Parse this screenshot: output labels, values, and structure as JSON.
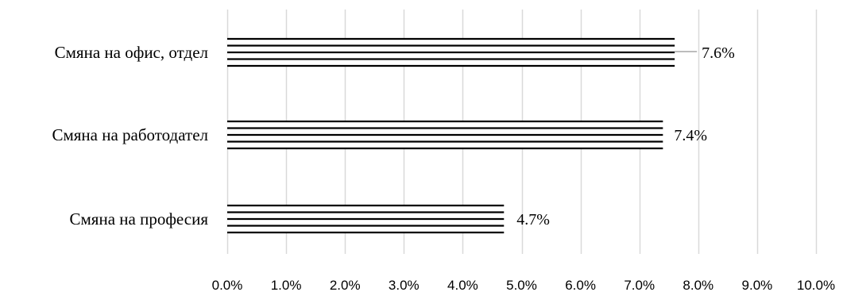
{
  "chart_data": {
    "type": "bar",
    "orientation": "horizontal",
    "categories": [
      "Смяна на офис, отдел",
      "Смяна на работодател",
      "Смяна на професия"
    ],
    "values": [
      7.6,
      7.4,
      4.7
    ],
    "data_labels": [
      "7.6%",
      "7.4%",
      "4.7%"
    ],
    "xlim": [
      0,
      10
    ],
    "xticks": [
      0,
      1,
      2,
      3,
      4,
      5,
      6,
      7,
      8,
      9,
      10
    ],
    "xtick_labels": [
      "0.0%",
      "1.0%",
      "2.0%",
      "3.0%",
      "4.0%",
      "5.0%",
      "6.0%",
      "7.0%",
      "8.0%",
      "9.0%",
      "10.0%"
    ],
    "grid": "vertical",
    "bar_fill": "horizontal-stripes",
    "colors": {
      "bar_stroke": "#000000",
      "grid": "#d9d9d9",
      "leader_line": "#a6a6a6",
      "background": "#ffffff"
    }
  }
}
